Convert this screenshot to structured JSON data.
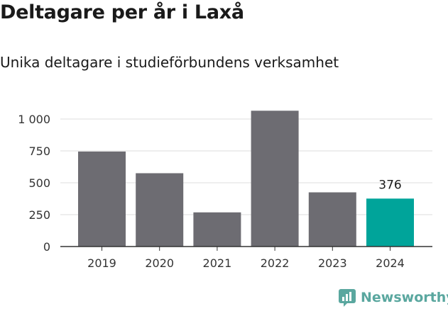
{
  "title": "Deltagare per år i Laxå",
  "subtitle": "Unika deltagare i studieförbundens verksamhet",
  "brand": {
    "name": "Newsworthy",
    "icon": "newsworthy-logo-icon",
    "color": "#5aa79f"
  },
  "colors": {
    "bar": "#6d6c72",
    "highlight": "#00a49a",
    "grid": "#dddddd",
    "axis": "#333333"
  },
  "chart_data": {
    "type": "bar",
    "categories": [
      "2019",
      "2020",
      "2021",
      "2022",
      "2023",
      "2024"
    ],
    "values": [
      745,
      575,
      268,
      1065,
      425,
      376
    ],
    "highlight_index": 5,
    "data_labels": [
      {
        "index": 5,
        "text": "376"
      }
    ],
    "yticks": [
      0,
      250,
      500,
      750,
      1000
    ],
    "ytick_labels": [
      "0",
      "250",
      "500",
      "750",
      "1 000"
    ],
    "ylim": [
      0,
      1100
    ],
    "grid": true,
    "xlabel": "",
    "ylabel": ""
  }
}
